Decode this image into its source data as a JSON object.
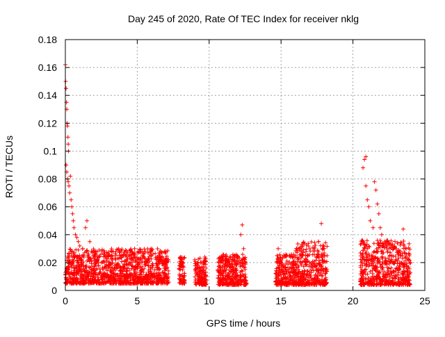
{
  "colors": {
    "series": "#ff0000",
    "grid": "#a0a0a0",
    "axis": "#000000"
  },
  "chart_data": {
    "type": "scatter",
    "title": "Day 245 of 2020, Rate Of TEC Index for receiver nklg",
    "xlabel": "GPS time / hours",
    "ylabel": "ROTI / TECUs",
    "xlim": [
      0,
      25
    ],
    "ylim": [
      0,
      0.18
    ],
    "xticks": [
      0,
      5,
      10,
      15,
      20,
      25
    ],
    "yticks": [
      0,
      0.02,
      0.04,
      0.06,
      0.08,
      0.1,
      0.12,
      0.14,
      0.16,
      0.18
    ],
    "ytick_labels": [
      "0",
      "0.02",
      "0.04",
      "0.06",
      "0.08",
      "0.1",
      "0.12",
      "0.14",
      "0.16",
      "0.18"
    ],
    "grid": true,
    "marker": "plus",
    "series": [
      {
        "points": [
          [
            0.0,
            0.162
          ],
          [
            0.02,
            0.15
          ],
          [
            0.05,
            0.145
          ],
          [
            0.08,
            0.135
          ],
          [
            0.1,
            0.13
          ],
          [
            0.12,
            0.12
          ],
          [
            0.15,
            0.118
          ],
          [
            0.18,
            0.11
          ],
          [
            0.2,
            0.105
          ],
          [
            0.22,
            0.1
          ],
          [
            0.05,
            0.09
          ],
          [
            0.1,
            0.085
          ],
          [
            0.15,
            0.08
          ],
          [
            0.2,
            0.078
          ],
          [
            0.25,
            0.075
          ],
          [
            0.3,
            0.07
          ],
          [
            0.35,
            0.082
          ],
          [
            0.4,
            0.065
          ],
          [
            0.45,
            0.06
          ],
          [
            0.5,
            0.055
          ],
          [
            0.55,
            0.05
          ],
          [
            0.6,
            0.045
          ],
          [
            0.7,
            0.04
          ],
          [
            0.8,
            0.038
          ],
          [
            0.9,
            0.035
          ],
          [
            1.0,
            0.032
          ],
          [
            1.2,
            0.03
          ],
          [
            1.4,
            0.045
          ],
          [
            1.5,
            0.05
          ],
          [
            1.7,
            0.035
          ],
          [
            2.0,
            0.025
          ],
          [
            2.5,
            0.02
          ],
          [
            3.0,
            0.018
          ],
          [
            3.5,
            0.022
          ],
          [
            3.8,
            0.028
          ],
          [
            4.0,
            0.025
          ],
          [
            4.5,
            0.02
          ],
          [
            5.0,
            0.022
          ],
          [
            5.5,
            0.02
          ],
          [
            6.0,
            0.03
          ],
          [
            6.5,
            0.025
          ],
          [
            7.0,
            0.02
          ],
          [
            1.0,
            0.015
          ],
          [
            2.0,
            0.012
          ],
          [
            3.0,
            0.01
          ],
          [
            4.0,
            0.012
          ],
          [
            5.0,
            0.01
          ],
          [
            6.0,
            0.012
          ],
          [
            7.0,
            0.01
          ],
          [
            0.5,
            0.02
          ],
          [
            8.0,
            0.024
          ],
          [
            8.1,
            0.01
          ],
          [
            8.15,
            0.02
          ],
          [
            8.2,
            0.006
          ],
          [
            9.0,
            0.022
          ],
          [
            9.2,
            0.018
          ],
          [
            9.4,
            0.014
          ],
          [
            9.5,
            0.008
          ],
          [
            9.6,
            0.02
          ],
          [
            9.7,
            0.024
          ],
          [
            10.8,
            0.02
          ],
          [
            11.0,
            0.022
          ],
          [
            11.2,
            0.018
          ],
          [
            11.5,
            0.016
          ],
          [
            11.8,
            0.02
          ],
          [
            12.0,
            0.024
          ],
          [
            12.2,
            0.04
          ],
          [
            12.3,
            0.047
          ],
          [
            12.4,
            0.03
          ],
          [
            12.5,
            0.015
          ],
          [
            14.8,
            0.03
          ],
          [
            15.0,
            0.02
          ],
          [
            15.2,
            0.018
          ],
          [
            15.5,
            0.015
          ],
          [
            15.8,
            0.02
          ],
          [
            16.0,
            0.025
          ],
          [
            16.2,
            0.03
          ],
          [
            16.5,
            0.025
          ],
          [
            17.0,
            0.03
          ],
          [
            17.3,
            0.028
          ],
          [
            17.6,
            0.035
          ],
          [
            17.8,
            0.048
          ],
          [
            18.0,
            0.03
          ],
          [
            18.2,
            0.025
          ],
          [
            20.7,
            0.088
          ],
          [
            20.8,
            0.094
          ],
          [
            20.9,
            0.096
          ],
          [
            20.9,
            0.075
          ],
          [
            21.0,
            0.065
          ],
          [
            21.1,
            0.06
          ],
          [
            21.2,
            0.05
          ],
          [
            21.4,
            0.045
          ],
          [
            21.5,
            0.078
          ],
          [
            21.6,
            0.072
          ],
          [
            21.7,
            0.062
          ],
          [
            21.8,
            0.055
          ],
          [
            21.9,
            0.045
          ],
          [
            22.0,
            0.04
          ],
          [
            22.2,
            0.035
          ],
          [
            22.5,
            0.03
          ],
          [
            23.0,
            0.03
          ],
          [
            23.3,
            0.025
          ],
          [
            23.5,
            0.044
          ],
          [
            23.7,
            0.03
          ],
          [
            24.0,
            0.02
          ],
          [
            22.8,
            0.02
          ],
          [
            23.2,
            0.015
          ],
          [
            21.0,
            0.03
          ],
          [
            20.6,
            0.02
          ],
          [
            21.3,
            0.025
          ]
        ],
        "bands": [
          [
            0.0,
            7.2,
            0.005,
            0.03
          ],
          [
            7.9,
            8.3,
            0.005,
            0.024
          ],
          [
            9.0,
            9.8,
            0.004,
            0.024
          ],
          [
            10.6,
            12.6,
            0.004,
            0.026
          ],
          [
            14.6,
            16.0,
            0.004,
            0.026
          ],
          [
            16.0,
            18.2,
            0.004,
            0.035
          ],
          [
            20.5,
            24.0,
            0.004,
            0.036
          ]
        ]
      }
    ]
  }
}
